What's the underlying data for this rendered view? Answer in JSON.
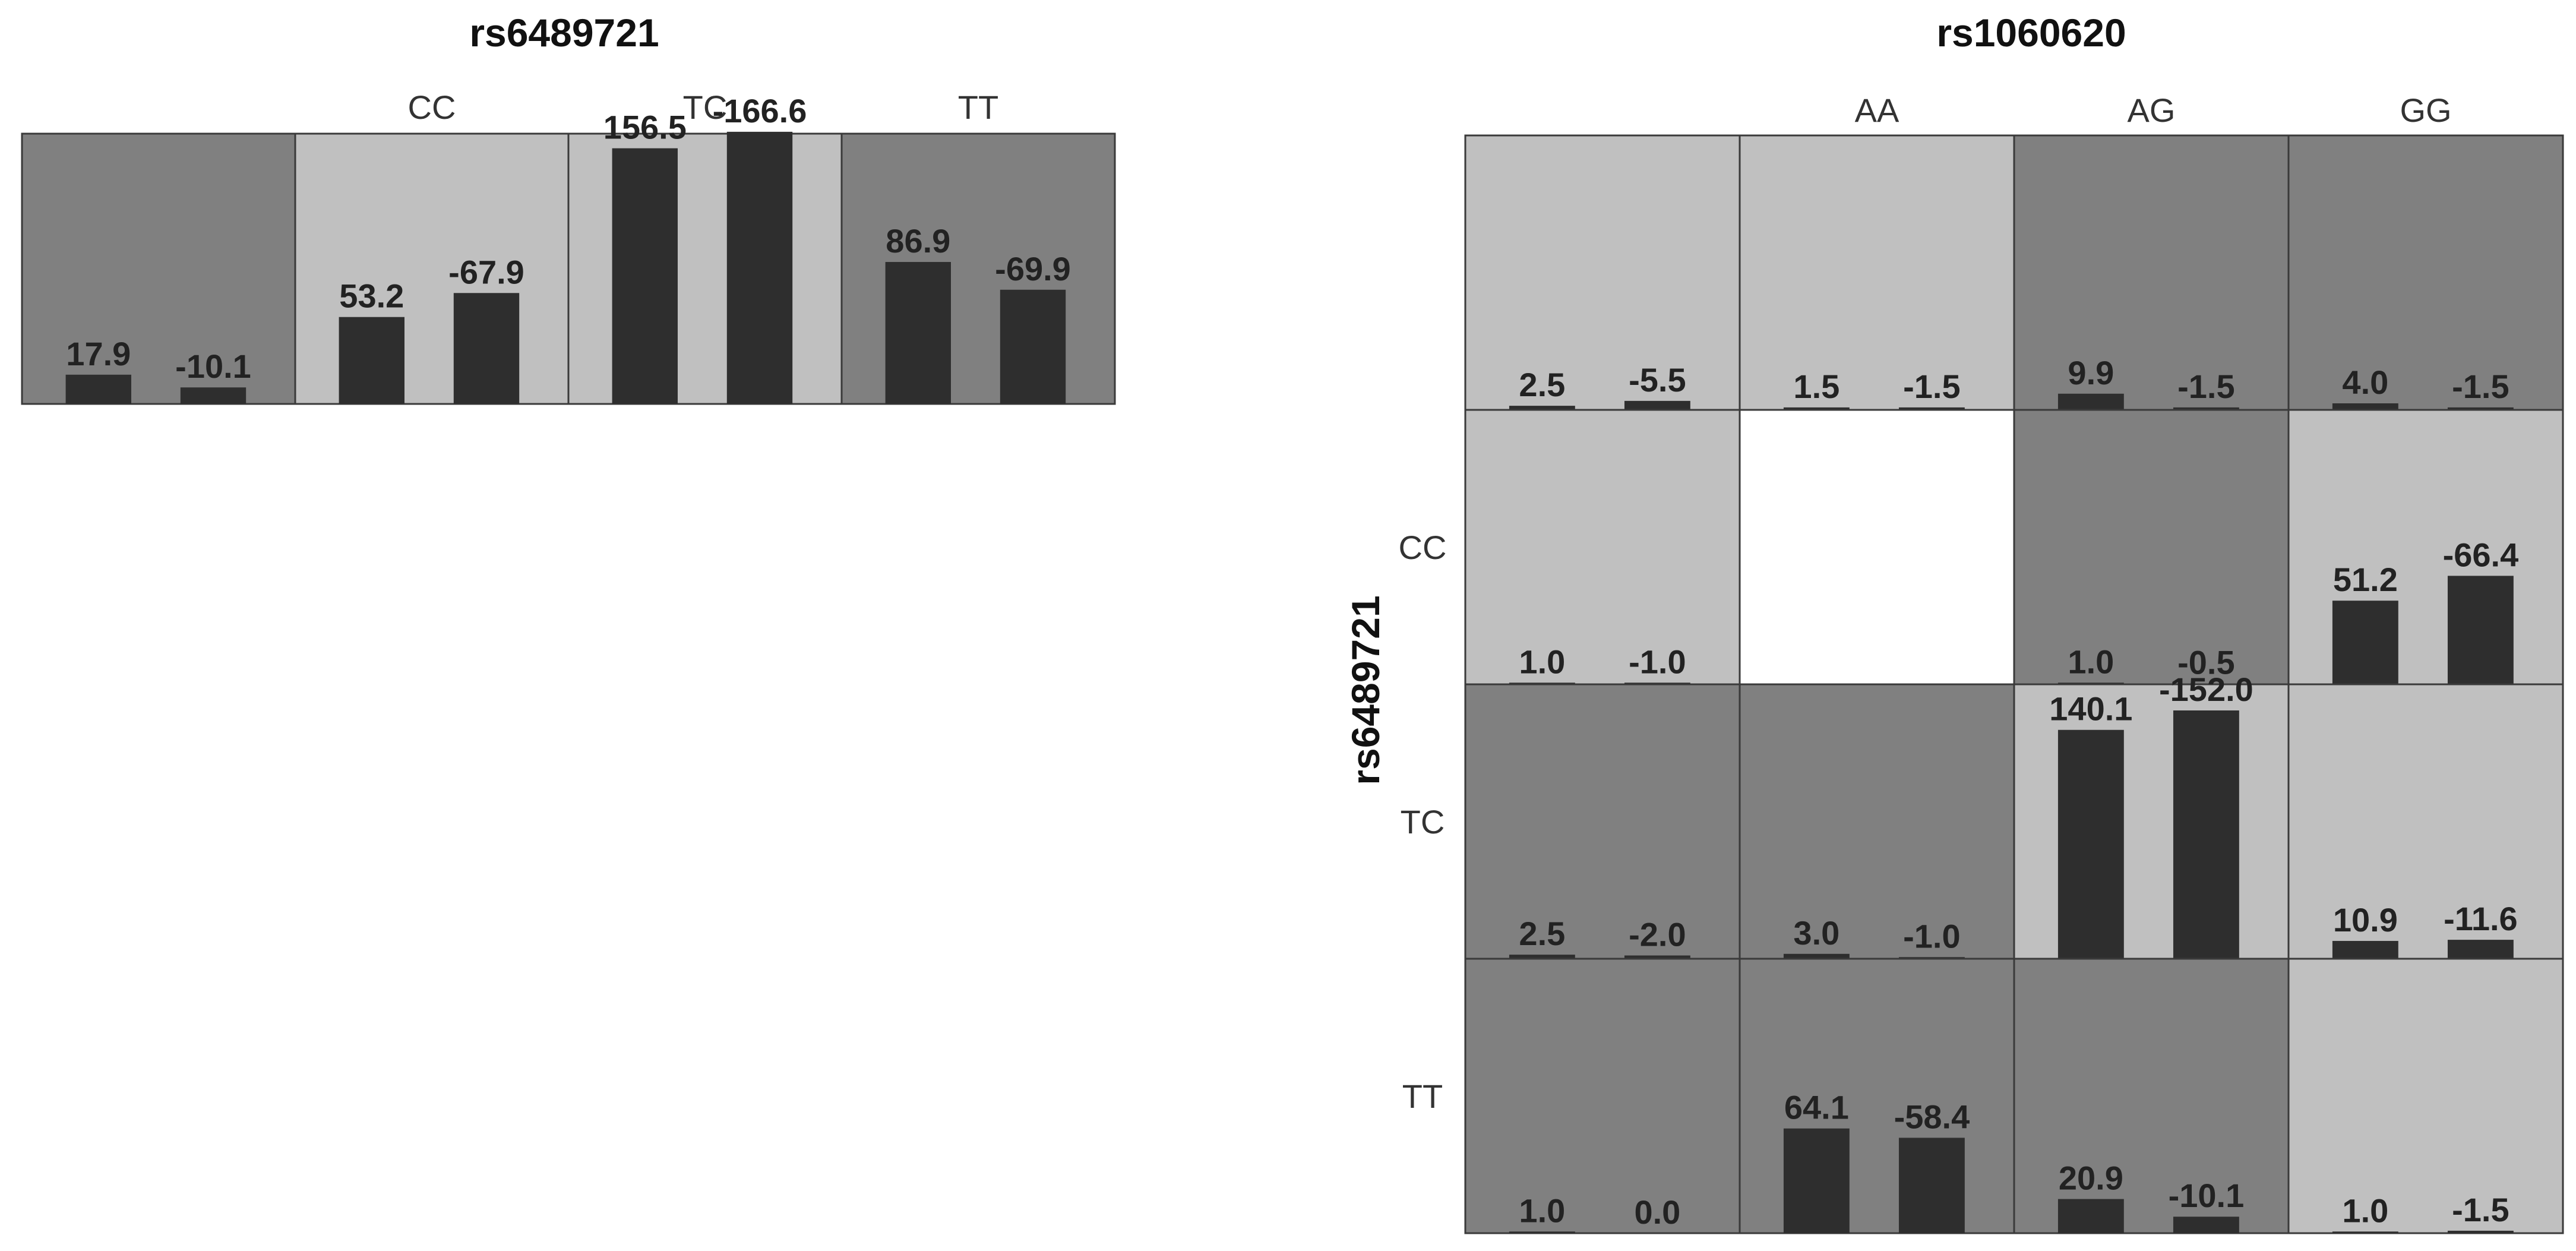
{
  "chart_data": [
    {
      "type": "bar",
      "title": "rs6489721",
      "categories": [
        "",
        "CC",
        "TC",
        "TT"
      ],
      "series": [
        {
          "name": "bar1",
          "values": [
            17.9,
            53.2,
            156.5,
            86.9
          ]
        },
        {
          "name": "bar2",
          "values": [
            -10.1,
            -67.9,
            -166.6,
            -69.9
          ]
        }
      ],
      "shading": [
        "dark",
        "light",
        "light",
        "dark"
      ]
    },
    {
      "type": "bar",
      "title": "rs1060620",
      "ylabel": "rs6489721",
      "col_categories": [
        "",
        "AA",
        "AG",
        "GG"
      ],
      "row_categories": [
        "",
        "CC",
        "TC",
        "TT"
      ],
      "cells": [
        [
          {
            "v1": 2.5,
            "v2": -5.5,
            "shade": "light"
          },
          {
            "v1": 1.5,
            "v2": -1.5,
            "shade": "light"
          },
          {
            "v1": 9.9,
            "v2": -1.5,
            "shade": "dark"
          },
          {
            "v1": 4.0,
            "v2": -1.5,
            "shade": "dark"
          }
        ],
        [
          {
            "v1": 1.0,
            "v2": -1.0,
            "shade": "light"
          },
          {
            "v1": null,
            "v2": null,
            "shade": "empty"
          },
          {
            "v1": 1.0,
            "v2": -0.5,
            "shade": "dark"
          },
          {
            "v1": 51.2,
            "v2": -66.4,
            "shade": "light"
          }
        ],
        [
          {
            "v1": 2.5,
            "v2": -2.0,
            "shade": "dark"
          },
          {
            "v1": 3.0,
            "v2": -1.0,
            "shade": "dark"
          },
          {
            "v1": 140.1,
            "v2": -152.0,
            "shade": "light"
          },
          {
            "v1": 10.9,
            "v2": -11.6,
            "shade": "light"
          }
        ],
        [
          {
            "v1": 1.0,
            "v2": 0.0,
            "shade": "dark"
          },
          {
            "v1": 64.1,
            "v2": -58.4,
            "shade": "dark"
          },
          {
            "v1": 20.9,
            "v2": -10.1,
            "shade": "dark"
          },
          {
            "v1": 1.0,
            "v2": -1.5,
            "shade": "light"
          }
        ]
      ]
    }
  ],
  "colors": {
    "light": "#c0c0c0",
    "dark": "#808080",
    "empty": "#ffffff",
    "bar": "#2e2e2e",
    "border": "#3a3a3a"
  }
}
